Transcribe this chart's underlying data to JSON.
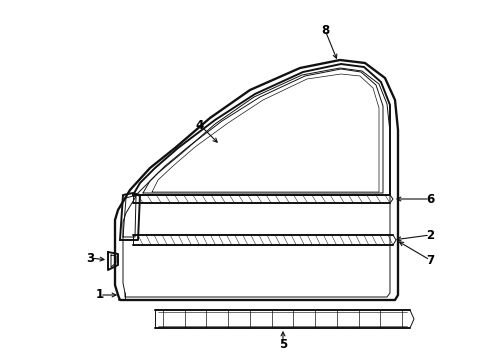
{
  "bg_color": "#ffffff",
  "line_color": "#111111",
  "lw_main": 1.4,
  "lw_thin": 0.7,
  "lw_hair": 0.4,
  "figsize": [
    4.9,
    3.6
  ],
  "dpi": 100
}
